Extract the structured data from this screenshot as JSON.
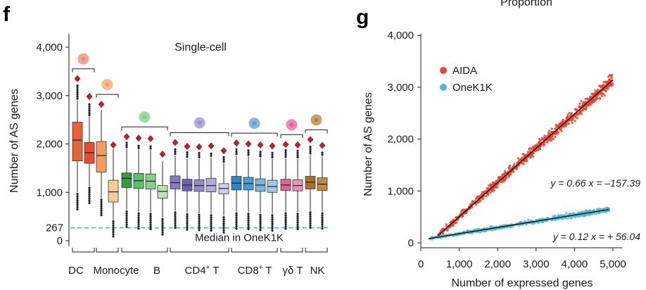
{
  "header_text": "Proportion",
  "colors": {
    "aida": "#e6452e",
    "onek1k": "#4db8d4",
    "median_line": "#4db8d4",
    "outlier_marker": "#d7191c"
  },
  "chart_data": [
    {
      "panel": "f",
      "type": "box",
      "title": "Single-cell",
      "ylabel": "Number of AS genes",
      "ylim": [
        -150,
        4400
      ],
      "yticks": [
        0,
        1000,
        2000,
        3000,
        4000
      ],
      "ytick_labels": [
        "0",
        "1,000",
        "2,000",
        "3,000",
        "4,000"
      ],
      "reference_line": {
        "value": 267,
        "value_label": "267",
        "label": "Median in OneK1K"
      },
      "groups": [
        {
          "name": "DC",
          "label": "DC",
          "superscript": "",
          "icon_color": "#f08a72",
          "boxes": [
            0,
            1
          ]
        },
        {
          "name": "Monocyte",
          "label": "Monocyte",
          "superscript": "",
          "icon_color": "#f3a460",
          "boxes": [
            2,
            3
          ]
        },
        {
          "name": "B",
          "label": "B",
          "superscript": "",
          "icon_color": "#7ed08a",
          "boxes": [
            4,
            5,
            6,
            7
          ]
        },
        {
          "name": "CD4 T",
          "label": "CD4",
          "label_suffix": " T",
          "superscript": "+",
          "icon_color": "#9c8fd4",
          "boxes": [
            8,
            9,
            10,
            11,
            12
          ]
        },
        {
          "name": "CD8 T",
          "label": "CD8",
          "label_suffix": " T",
          "superscript": "+",
          "icon_color": "#5b9fd6",
          "boxes": [
            13,
            14,
            15,
            16
          ]
        },
        {
          "name": "γδ T",
          "label": "γδ T",
          "superscript": "",
          "icon_color": "#e8609a",
          "boxes": [
            17,
            18
          ]
        },
        {
          "name": "NK",
          "label": "NK",
          "superscript": "",
          "icon_color": "#b5823e",
          "boxes": [
            19,
            20
          ]
        }
      ],
      "boxes": [
        {
          "q1": 1650,
          "median": 2080,
          "q3": 2450,
          "wlow": 1000,
          "whigh": 2900,
          "max_marker": 3350,
          "color": "#e8603c"
        },
        {
          "q1": 1600,
          "median": 1820,
          "q3": 2030,
          "wlow": 1130,
          "whigh": 2560,
          "max_marker": 2980,
          "color": "#e84a33"
        },
        {
          "q1": 1420,
          "median": 1760,
          "q3": 2050,
          "wlow": 880,
          "whigh": 2700,
          "max_marker": 2820,
          "color": "#f59e5e"
        },
        {
          "q1": 800,
          "median": 1010,
          "q3": 1250,
          "wlow": 440,
          "whigh": 1900,
          "max_marker": 1980,
          "color": "#f8cc9a"
        },
        {
          "q1": 1100,
          "median": 1290,
          "q3": 1400,
          "wlow": 640,
          "whigh": 1900,
          "max_marker": 2150,
          "color": "#2e9e3e"
        },
        {
          "q1": 1080,
          "median": 1240,
          "q3": 1390,
          "wlow": 600,
          "whigh": 1880,
          "max_marker": 2120,
          "color": "#5cbf6a"
        },
        {
          "q1": 1070,
          "median": 1230,
          "q3": 1380,
          "wlow": 590,
          "whigh": 1870,
          "max_marker": 2110,
          "color": "#86cf8a"
        },
        {
          "q1": 880,
          "median": 1020,
          "q3": 1140,
          "wlow": 480,
          "whigh": 1640,
          "max_marker": 1790,
          "color": "#bfe3b2"
        },
        {
          "q1": 1070,
          "median": 1200,
          "q3": 1340,
          "wlow": 620,
          "whigh": 1760,
          "max_marker": 2030,
          "color": "#8a78c6"
        },
        {
          "q1": 1030,
          "median": 1150,
          "q3": 1270,
          "wlow": 580,
          "whigh": 1700,
          "max_marker": 1950,
          "color": "#7162b4"
        },
        {
          "q1": 1020,
          "median": 1140,
          "q3": 1260,
          "wlow": 570,
          "whigh": 1690,
          "max_marker": 1940,
          "color": "#9788cc"
        },
        {
          "q1": 1010,
          "median": 1140,
          "q3": 1290,
          "wlow": 560,
          "whigh": 1720,
          "max_marker": 1960,
          "color": "#b6abdd"
        },
        {
          "q1": 970,
          "median": 1080,
          "q3": 1180,
          "wlow": 520,
          "whigh": 1600,
          "max_marker": 1860,
          "color": "#d2cbe9"
        },
        {
          "q1": 1050,
          "median": 1190,
          "q3": 1330,
          "wlow": 600,
          "whigh": 1760,
          "max_marker": 2020,
          "color": "#2f86c8"
        },
        {
          "q1": 1050,
          "median": 1180,
          "q3": 1310,
          "wlow": 590,
          "whigh": 1740,
          "max_marker": 2000,
          "color": "#4a9ad3"
        },
        {
          "q1": 1020,
          "median": 1150,
          "q3": 1280,
          "wlow": 570,
          "whigh": 1710,
          "max_marker": 1980,
          "color": "#79b4dd"
        },
        {
          "q1": 1000,
          "median": 1120,
          "q3": 1250,
          "wlow": 560,
          "whigh": 1690,
          "max_marker": 1960,
          "color": "#9fc9e6"
        },
        {
          "q1": 1040,
          "median": 1150,
          "q3": 1270,
          "wlow": 600,
          "whigh": 1700,
          "max_marker": 1990,
          "color": "#e8609a"
        },
        {
          "q1": 1030,
          "median": 1140,
          "q3": 1260,
          "wlow": 590,
          "whigh": 1690,
          "max_marker": 1980,
          "color": "#f090b8"
        },
        {
          "q1": 1070,
          "median": 1210,
          "q3": 1330,
          "wlow": 620,
          "whigh": 1770,
          "max_marker": 2090,
          "color": "#a8702c"
        },
        {
          "q1": 1040,
          "median": 1170,
          "q3": 1300,
          "wlow": 600,
          "whigh": 1740,
          "max_marker": 1970,
          "color": "#c08a44"
        }
      ]
    },
    {
      "panel": "g",
      "type": "scatter",
      "title": "",
      "xlabel": "Number of expressed genes",
      "ylabel": "Number of AS genes",
      "xlim": [
        0,
        5300
      ],
      "ylim": [
        -30,
        4000
      ],
      "xticks": [
        0,
        1000,
        2000,
        3000,
        4000,
        5000
      ],
      "xtick_labels": [
        "0",
        "1,000",
        "2,000",
        "3,000",
        "4,000",
        "5,000"
      ],
      "yticks": [
        0,
        1000,
        2000,
        3000,
        4000
      ],
      "ytick_labels": [
        "0",
        "1,000",
        "2,000",
        "3,000",
        "4,000"
      ],
      "series": [
        {
          "name": "AIDA",
          "label": "AIDA",
          "color": "#e6452e",
          "x_range": [
            450,
            5000
          ],
          "fit": {
            "slope": 0.66,
            "intercept": -157.39,
            "equation": "y = 0.66 x = –157.39"
          }
        },
        {
          "name": "OneK1K",
          "label": "OneK1K",
          "color": "#4db8d4",
          "x_range": [
            200,
            4900
          ],
          "fit": {
            "slope": 0.12,
            "intercept": 56.04,
            "equation": "y = 0.12 x = + 56.04"
          }
        }
      ]
    }
  ]
}
